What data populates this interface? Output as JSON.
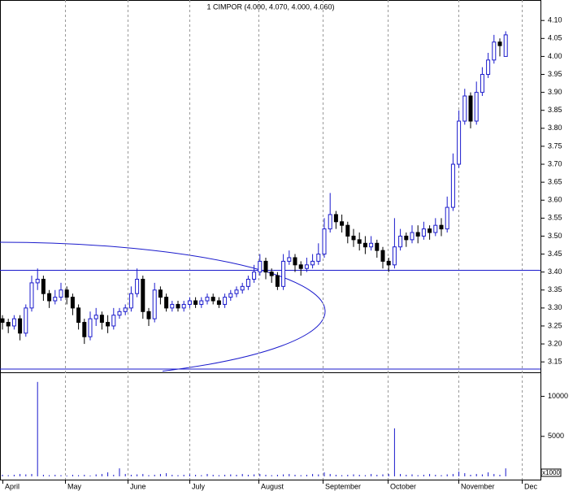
{
  "chart_data": {
    "type": "candlestick",
    "title": "1 CIMPOR (4.000, 4.070, 4.000, 4.060)",
    "months": [
      "April",
      "May",
      "June",
      "July",
      "August",
      "September",
      "October",
      "November",
      "Dec"
    ],
    "ohlc": [
      [
        3.27,
        3.28,
        3.24,
        3.26
      ],
      [
        3.26,
        3.27,
        3.23,
        3.25
      ],
      [
        3.25,
        3.28,
        3.24,
        3.27
      ],
      [
        3.27,
        3.28,
        3.21,
        3.23
      ],
      [
        3.23,
        3.31,
        3.22,
        3.3
      ],
      [
        3.3,
        3.39,
        3.29,
        3.37
      ],
      [
        3.37,
        3.41,
        3.35,
        3.38
      ],
      [
        3.38,
        3.39,
        3.32,
        3.34
      ],
      [
        3.34,
        3.35,
        3.3,
        3.32
      ],
      [
        3.32,
        3.35,
        3.31,
        3.33
      ],
      [
        3.33,
        3.37,
        3.32,
        3.35
      ],
      [
        3.35,
        3.36,
        3.31,
        3.33
      ],
      [
        3.33,
        3.34,
        3.28,
        3.3
      ],
      [
        3.3,
        3.31,
        3.24,
        3.26
      ],
      [
        3.26,
        3.27,
        3.2,
        3.22
      ],
      [
        3.22,
        3.29,
        3.21,
        3.27
      ],
      [
        3.27,
        3.3,
        3.25,
        3.28
      ],
      [
        3.28,
        3.29,
        3.24,
        3.26
      ],
      [
        3.26,
        3.28,
        3.23,
        3.25
      ],
      [
        3.25,
        3.3,
        3.24,
        3.28
      ],
      [
        3.28,
        3.3,
        3.27,
        3.29
      ],
      [
        3.29,
        3.31,
        3.28,
        3.3
      ],
      [
        3.3,
        3.36,
        3.29,
        3.34
      ],
      [
        3.34,
        3.41,
        3.33,
        3.38
      ],
      [
        3.38,
        3.39,
        3.27,
        3.29
      ],
      [
        3.29,
        3.3,
        3.25,
        3.27
      ],
      [
        3.27,
        3.37,
        3.26,
        3.35
      ],
      [
        3.35,
        3.36,
        3.31,
        3.33
      ],
      [
        3.33,
        3.34,
        3.29,
        3.3
      ],
      [
        3.3,
        3.32,
        3.29,
        3.31
      ],
      [
        3.31,
        3.32,
        3.29,
        3.3
      ],
      [
        3.3,
        3.32,
        3.29,
        3.31
      ],
      [
        3.31,
        3.33,
        3.3,
        3.32
      ],
      [
        3.32,
        3.33,
        3.3,
        3.31
      ],
      [
        3.31,
        3.33,
        3.3,
        3.32
      ],
      [
        3.32,
        3.34,
        3.31,
        3.33
      ],
      [
        3.33,
        3.34,
        3.31,
        3.32
      ],
      [
        3.32,
        3.33,
        3.3,
        3.31
      ],
      [
        3.31,
        3.34,
        3.3,
        3.33
      ],
      [
        3.33,
        3.35,
        3.32,
        3.34
      ],
      [
        3.34,
        3.36,
        3.33,
        3.35
      ],
      [
        3.35,
        3.37,
        3.34,
        3.36
      ],
      [
        3.36,
        3.39,
        3.35,
        3.38
      ],
      [
        3.38,
        3.42,
        3.37,
        3.4
      ],
      [
        3.4,
        3.45,
        3.39,
        3.43
      ],
      [
        3.43,
        3.44,
        3.38,
        3.4
      ],
      [
        3.4,
        3.41,
        3.37,
        3.39
      ],
      [
        3.39,
        3.4,
        3.35,
        3.36
      ],
      [
        3.36,
        3.45,
        3.35,
        3.43
      ],
      [
        3.43,
        3.46,
        3.42,
        3.44
      ],
      [
        3.44,
        3.45,
        3.4,
        3.42
      ],
      [
        3.42,
        3.43,
        3.39,
        3.41
      ],
      [
        3.41,
        3.44,
        3.4,
        3.42
      ],
      [
        3.42,
        3.45,
        3.41,
        3.43
      ],
      [
        3.43,
        3.48,
        3.42,
        3.45
      ],
      [
        3.45,
        3.55,
        3.44,
        3.52
      ],
      [
        3.52,
        3.62,
        3.51,
        3.56
      ],
      [
        3.56,
        3.57,
        3.52,
        3.54
      ],
      [
        3.54,
        3.56,
        3.51,
        3.53
      ],
      [
        3.53,
        3.54,
        3.48,
        3.5
      ],
      [
        3.5,
        3.52,
        3.47,
        3.49
      ],
      [
        3.49,
        3.51,
        3.46,
        3.48
      ],
      [
        3.48,
        3.5,
        3.45,
        3.47
      ],
      [
        3.47,
        3.5,
        3.46,
        3.48
      ],
      [
        3.48,
        3.49,
        3.44,
        3.46
      ],
      [
        3.46,
        3.47,
        3.41,
        3.43
      ],
      [
        3.43,
        3.44,
        3.4,
        3.42
      ],
      [
        3.42,
        3.55,
        3.41,
        3.47
      ],
      [
        3.47,
        3.52,
        3.46,
        3.5
      ],
      [
        3.5,
        3.51,
        3.47,
        3.49
      ],
      [
        3.49,
        3.53,
        3.48,
        3.51
      ],
      [
        3.51,
        3.53,
        3.48,
        3.5
      ],
      [
        3.5,
        3.54,
        3.49,
        3.52
      ],
      [
        3.52,
        3.53,
        3.49,
        3.51
      ],
      [
        3.51,
        3.55,
        3.5,
        3.53
      ],
      [
        3.53,
        3.55,
        3.5,
        3.52
      ],
      [
        3.52,
        3.61,
        3.51,
        3.58
      ],
      [
        3.58,
        3.73,
        3.57,
        3.7
      ],
      [
        3.7,
        3.85,
        3.69,
        3.82
      ],
      [
        3.82,
        3.91,
        3.81,
        3.89
      ],
      [
        3.89,
        3.9,
        3.8,
        3.82
      ],
      [
        3.82,
        3.93,
        3.81,
        3.9
      ],
      [
        3.9,
        3.97,
        3.89,
        3.95
      ],
      [
        3.95,
        4.01,
        3.94,
        3.99
      ],
      [
        3.99,
        4.06,
        3.98,
        4.04
      ],
      [
        4.04,
        4.05,
        4.0,
        4.03
      ],
      [
        4.0,
        4.07,
        4.0,
        4.06
      ]
    ],
    "volume": [
      200,
      150,
      200,
      300,
      250,
      300,
      11800,
      200,
      150,
      200,
      150,
      100,
      200,
      150,
      200,
      100,
      250,
      300,
      500,
      200,
      1000,
      300,
      200,
      250,
      300,
      150,
      200,
      300,
      400,
      200,
      150,
      200,
      250,
      200,
      150,
      300,
      200,
      150,
      200,
      250,
      200,
      300,
      200,
      250,
      300,
      200,
      150,
      200,
      250,
      300,
      200,
      150,
      200,
      300,
      250,
      500,
      300,
      200,
      150,
      200,
      250,
      200,
      150,
      300,
      200,
      250,
      300,
      6000,
      300,
      200,
      250,
      150,
      200,
      300,
      200,
      150,
      250,
      300,
      600,
      400,
      200,
      300,
      250,
      500,
      300,
      200,
      1000
    ],
    "ylim": [
      3.121,
      4.157
    ],
    "yticks": [
      {
        "value": 3.15,
        "label": "3.15"
      },
      {
        "value": 3.2,
        "label": "3.20"
      },
      {
        "value": 3.25,
        "label": "3.25"
      },
      {
        "value": 3.3,
        "label": "3.30"
      },
      {
        "value": 3.35,
        "label": "3.35"
      },
      {
        "value": 3.4,
        "label": "3.40"
      },
      {
        "value": 3.45,
        "label": "3.45"
      },
      {
        "value": 3.5,
        "label": "3.50"
      },
      {
        "value": 3.55,
        "label": "3.55"
      },
      {
        "value": 3.6,
        "label": "3.60"
      },
      {
        "value": 3.65,
        "label": "3.65"
      },
      {
        "value": 3.7,
        "label": "3.70"
      },
      {
        "value": 3.75,
        "label": "3.75"
      },
      {
        "value": 3.8,
        "label": "3.80"
      },
      {
        "value": 3.85,
        "label": "3.85"
      },
      {
        "value": 3.9,
        "label": "3.90"
      },
      {
        "value": 3.95,
        "label": "3.95"
      },
      {
        "value": 4.0,
        "label": "4.00"
      },
      {
        "value": 4.05,
        "label": "4.05"
      },
      {
        "value": 4.1,
        "label": "4.10"
      }
    ],
    "volume_ylim": [
      0,
      13000
    ],
    "volume_yticks": [
      5000,
      10000
    ],
    "volume_unit": "x1000",
    "horizontal_lines": [
      3.405,
      3.13
    ],
    "up_color": "#1a1acc",
    "down_color": "#000000",
    "line_color": "#1a1acc"
  }
}
